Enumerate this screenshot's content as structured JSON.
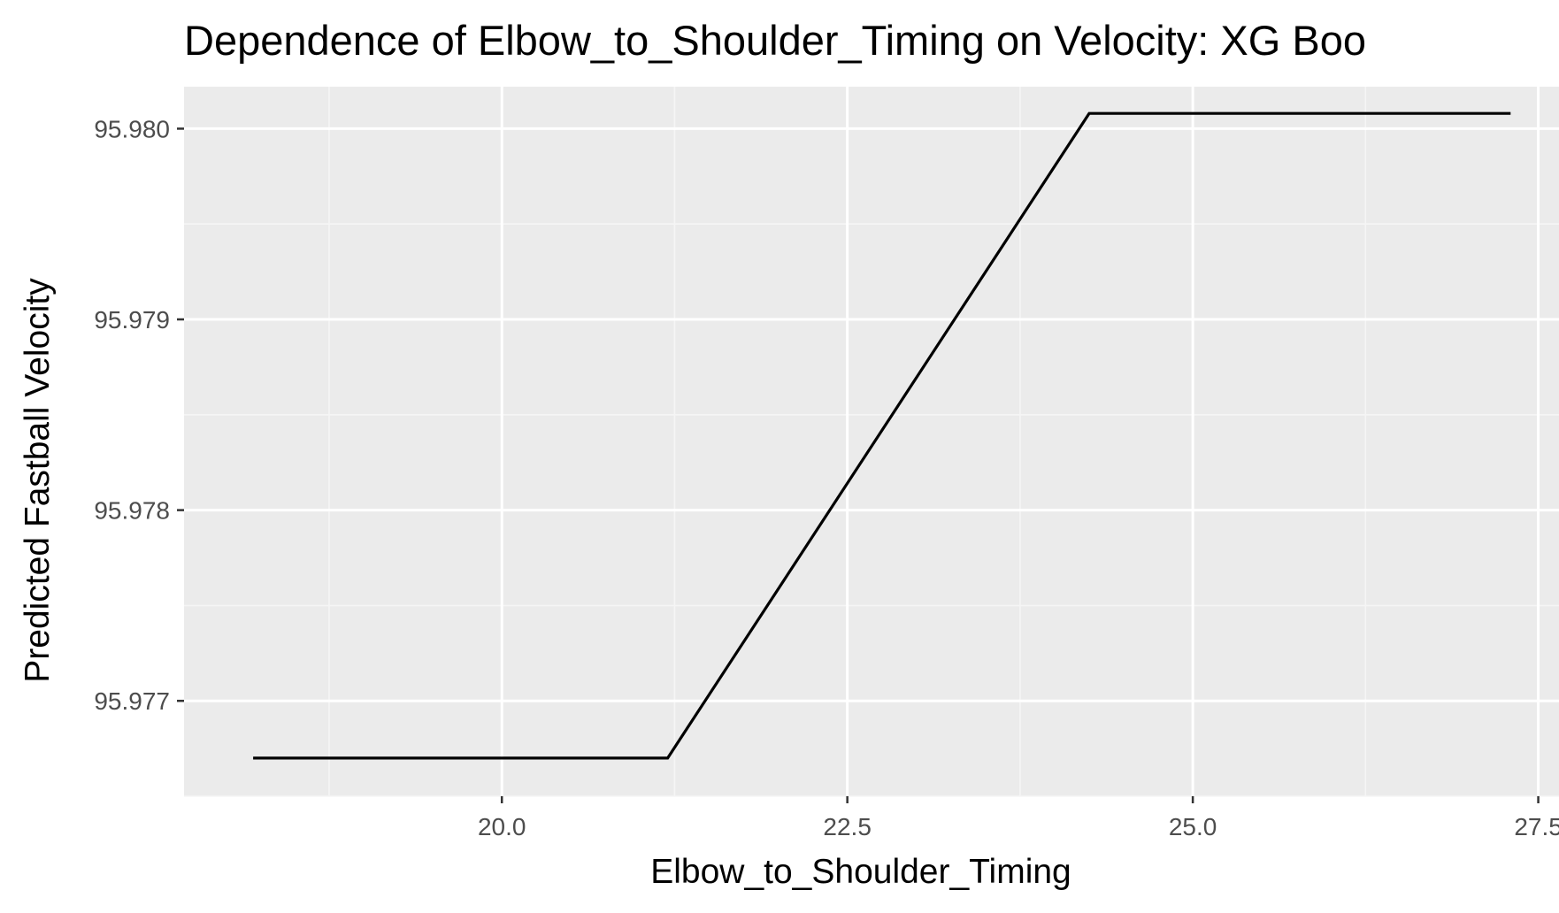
{
  "chart_data": {
    "type": "line",
    "title": "Dependence of Elbow_to_Shoulder_Timing on Velocity: XG Boo",
    "xlabel": "Elbow_to_Shoulder_Timing",
    "ylabel": "Predicted Fastball Velocity",
    "xlim": [
      17.7,
      27.65
    ],
    "ylim": [
      95.9765,
      95.98022
    ],
    "x_ticks": [
      20.0,
      22.5,
      25.0,
      27.5
    ],
    "x_tick_labels": [
      "20.0",
      "22.5",
      "25.0",
      "27.5"
    ],
    "y_ticks": [
      95.977,
      95.978,
      95.979,
      95.98
    ],
    "y_tick_labels": [
      "95.977",
      "95.978",
      "95.979",
      "95.980"
    ],
    "grid": true,
    "legend": "none",
    "series": [
      {
        "x": [
          18.2,
          21.2,
          24.25,
          27.3
        ],
        "y": [
          95.9767,
          95.9767,
          95.98008,
          95.98008
        ]
      }
    ],
    "colors": {
      "panel_background": "#ebebeb",
      "grid_major": "#ffffff",
      "grid_minor": "#f5f5f5",
      "line": "#000000",
      "tick_text": "#4d4d4d"
    }
  }
}
